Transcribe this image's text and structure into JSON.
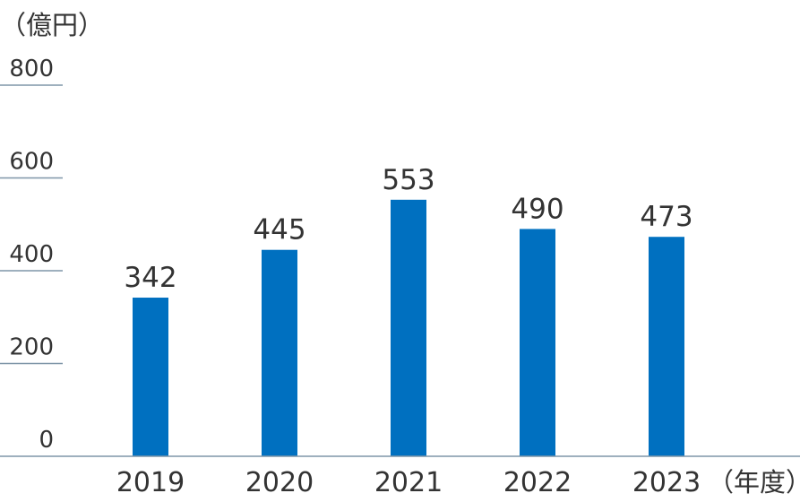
{
  "chart_data": {
    "type": "bar",
    "y_unit_label": "（億円）",
    "x_unit_label": "（年度）",
    "categories": [
      "2019",
      "2020",
      "2021",
      "2022",
      "2023"
    ],
    "values": [
      342,
      445,
      553,
      490,
      473
    ],
    "value_labels": [
      "342",
      "445",
      "553",
      "490",
      "473"
    ],
    "y_ticks": [
      0,
      200,
      400,
      600,
      800
    ],
    "y_tick_labels": [
      "0",
      "200",
      "400",
      "600",
      "800"
    ],
    "ylim": [
      0,
      800
    ],
    "grid": false,
    "colors": {
      "bar": "#0070c0",
      "tick_line": "#7f96a8",
      "axis": "#7f96a8",
      "text": "#333333"
    }
  }
}
